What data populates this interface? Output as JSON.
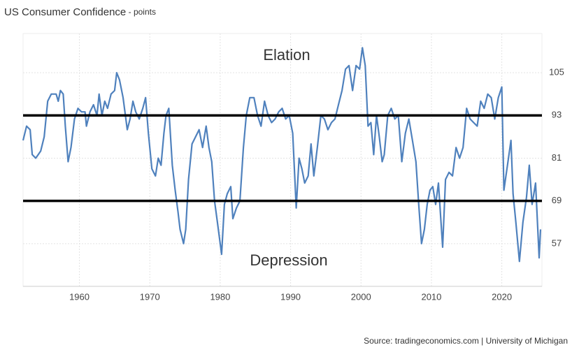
{
  "chart_data": {
    "type": "line",
    "title": "US Consumer Confidence",
    "subtitle": "points",
    "source": "Source: tradingeconomics.com | University of Michigan",
    "annotations": [
      "Elation",
      "Depression"
    ],
    "reference_lines": [
      93,
      69
    ],
    "xlim": [
      1952,
      2025.7
    ],
    "ylim": [
      45,
      116
    ],
    "xticks": [
      1960,
      1970,
      1980,
      1990,
      2000,
      2010,
      2020
    ],
    "yticks": [
      57,
      69,
      81,
      93,
      105
    ],
    "grid": true,
    "series": [
      {
        "name": "US Consumer Confidence",
        "color": "#4f81bd",
        "x": [
          1952.0,
          1952.5,
          1953,
          1953.3,
          1953.8,
          1954.5,
          1955,
          1955.5,
          1956,
          1956.7,
          1957,
          1957.3,
          1957.7,
          1958,
          1958.4,
          1958.8,
          1959.3,
          1959.8,
          1960.3,
          1960.8,
          1961,
          1961.5,
          1962,
          1962.5,
          1962.8,
          1963.2,
          1963.6,
          1964,
          1964.5,
          1965,
          1965.3,
          1965.7,
          1966.2,
          1966.8,
          1967.2,
          1967.6,
          1968,
          1968.5,
          1969,
          1969.4,
          1969.8,
          1970.3,
          1970.8,
          1971.2,
          1971.6,
          1972,
          1972.3,
          1972.7,
          1973.2,
          1973.6,
          1974,
          1974.3,
          1974.8,
          1975.1,
          1975.5,
          1976,
          1976.5,
          1977,
          1977.5,
          1978,
          1978.4,
          1978.8,
          1979.2,
          1979.6,
          1980.2,
          1980.6,
          1981,
          1981.5,
          1981.8,
          1982.3,
          1982.8,
          1983.3,
          1983.7,
          1984.2,
          1984.8,
          1985.3,
          1985.8,
          1986.3,
          1986.8,
          1987.3,
          1987.8,
          1988.3,
          1988.8,
          1989.3,
          1989.8,
          1990.3,
          1990.8,
          1991.2,
          1991.6,
          1992,
          1992.5,
          1992.9,
          1993.3,
          1993.8,
          1994.3,
          1994.8,
          1995.3,
          1995.8,
          1996.3,
          1996.8,
          1997.3,
          1997.8,
          1998.3,
          1998.8,
          1999.3,
          1999.8,
          2000.2,
          2000.6,
          2001,
          2001.4,
          2001.8,
          2002.2,
          2002.6,
          2003,
          2003.3,
          2003.8,
          2004.3,
          2004.8,
          2005.3,
          2005.8,
          2006.3,
          2006.8,
          2007.3,
          2007.8,
          2008.2,
          2008.6,
          2009,
          2009.4,
          2009.8,
          2010.2,
          2010.6,
          2011,
          2011.6,
          2012,
          2012.5,
          2013,
          2013.5,
          2014,
          2014.5,
          2015,
          2015.5,
          2016,
          2016.5,
          2017,
          2017.5,
          2018,
          2018.5,
          2019,
          2019.5,
          2020,
          2020.3,
          2020.8,
          2021.3,
          2021.6,
          2022,
          2022.5,
          2023,
          2023.5,
          2023.9,
          2024.3,
          2024.8,
          2025.3,
          2025.5
        ],
        "values": [
          86,
          90,
          89,
          82,
          81,
          83,
          87,
          97,
          99,
          99,
          97,
          100,
          99,
          90,
          80,
          84,
          92,
          95,
          94,
          94,
          90,
          94,
          96,
          93,
          99,
          93,
          97,
          95,
          99,
          100,
          105,
          103,
          98,
          89,
          92,
          97,
          94,
          92,
          95,
          98,
          88,
          78,
          76,
          81,
          79,
          88,
          93,
          95,
          79,
          72,
          66,
          61,
          57,
          61,
          75,
          85,
          87,
          89,
          84,
          90,
          84,
          80,
          69,
          63,
          54,
          68,
          71,
          73,
          64,
          67,
          69,
          84,
          93,
          98,
          98,
          93,
          90,
          97,
          93,
          91,
          92,
          94,
          95,
          92,
          93,
          88,
          67,
          81,
          78,
          74,
          76,
          85,
          76,
          84,
          93,
          92,
          89,
          91,
          92,
          96,
          100,
          106,
          107,
          100,
          107,
          106,
          112,
          107,
          90,
          91,
          82,
          93,
          87,
          80,
          82,
          93,
          95,
          92,
          93,
          80,
          88,
          92,
          86,
          80,
          68,
          57,
          61,
          68,
          72,
          73,
          68,
          74,
          56,
          75,
          77,
          76,
          84,
          81,
          84,
          95,
          92,
          91,
          90,
          97,
          95,
          99,
          98,
          92,
          98,
          101,
          72,
          79,
          86,
          71,
          63,
          52,
          63,
          70,
          79,
          68,
          74,
          53,
          61
        ]
      }
    ]
  }
}
